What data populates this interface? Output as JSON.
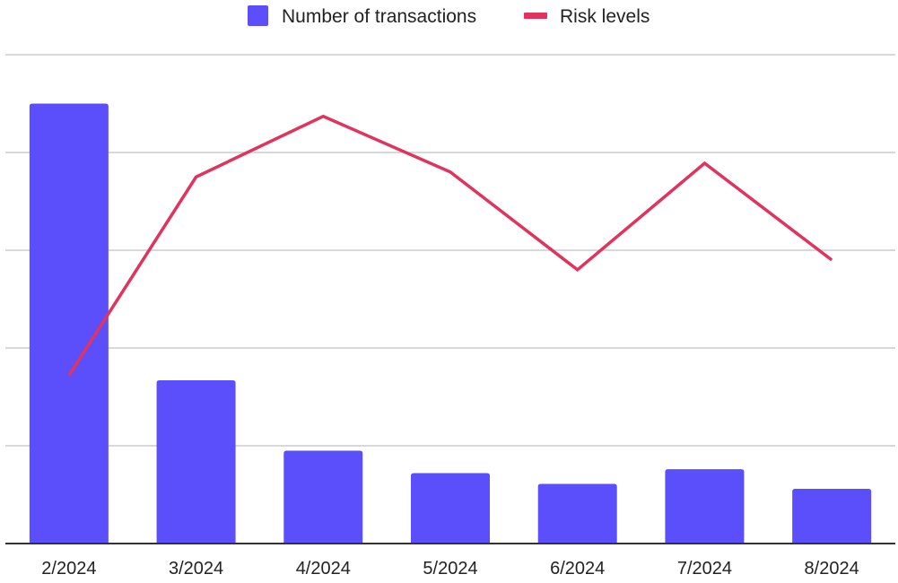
{
  "chart_data": {
    "type": "bar",
    "categories": [
      "2/2024",
      "3/2024",
      "4/2024",
      "5/2024",
      "6/2024",
      "7/2024",
      "8/2024"
    ],
    "series": [
      {
        "name": "Number of transactions",
        "type": "bar",
        "color": "#5a4ffb",
        "values": [
          4.5,
          1.67,
          0.95,
          0.72,
          0.61,
          0.76,
          0.56
        ]
      },
      {
        "name": "Risk levels",
        "type": "line",
        "color": "#e0335e",
        "values": [
          1.72,
          3.75,
          4.37,
          3.8,
          2.8,
          3.89,
          2.9
        ]
      }
    ],
    "title": "",
    "xlabel": "",
    "ylabel": "",
    "ylim": [
      0,
      5
    ],
    "y_ticks": [
      0,
      1,
      2,
      3,
      4,
      5
    ],
    "y_tick_labels_visible": false,
    "grid": true,
    "legend_position": "top"
  }
}
